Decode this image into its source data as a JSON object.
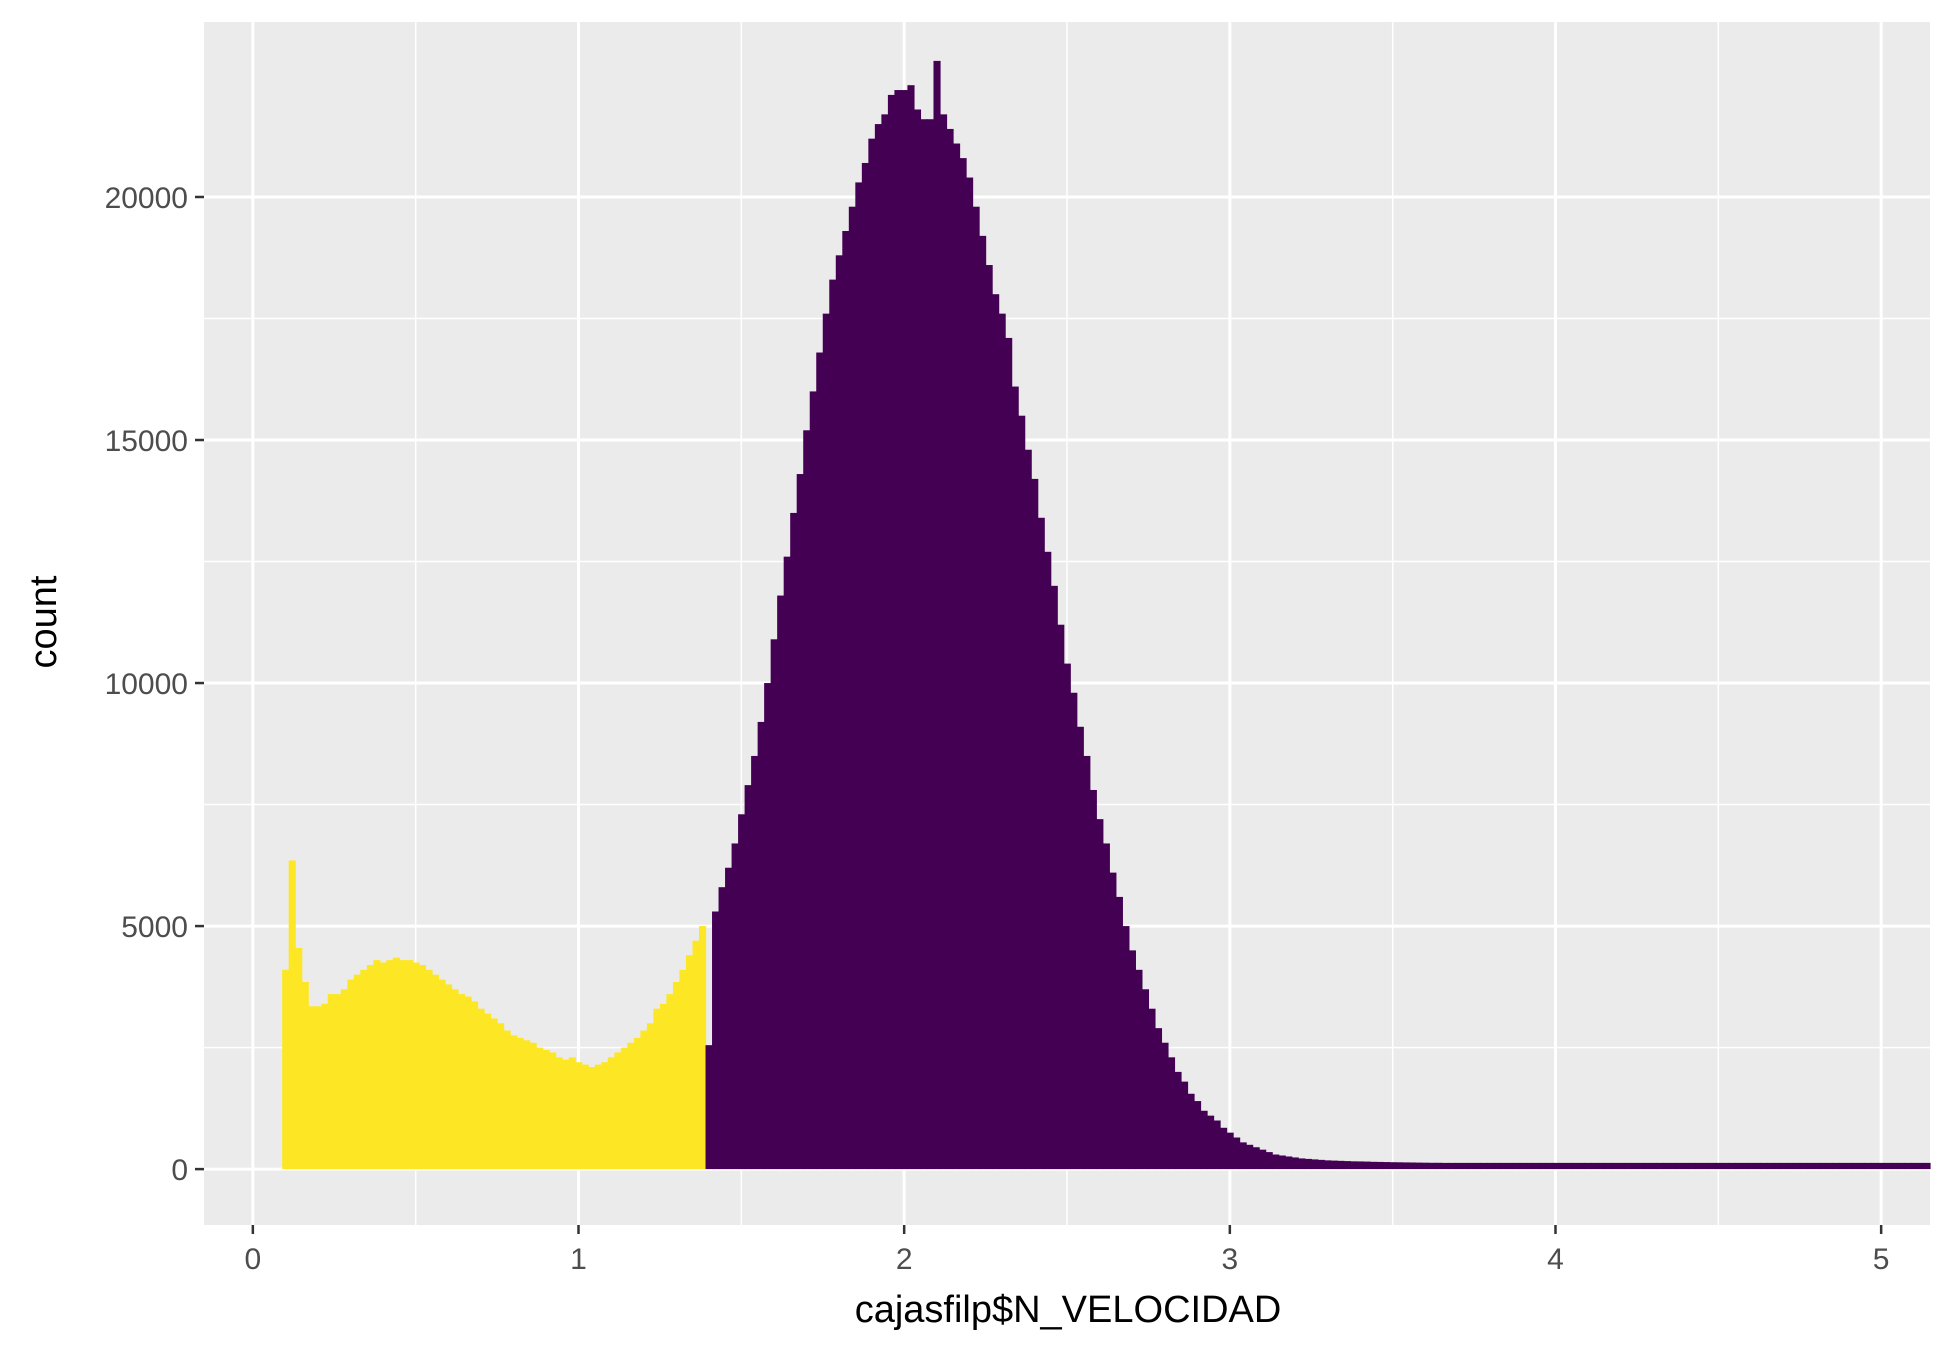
{
  "chart_data": {
    "type": "bar",
    "xlabel": "cajasfilp$N_VELOCIDAD",
    "ylabel": "count",
    "xlim": [
      -0.15,
      5.15
    ],
    "ylim": [
      -1150,
      23600
    ],
    "x_ticks": [
      0,
      1,
      2,
      3,
      4,
      5
    ],
    "y_ticks": [
      0,
      5000,
      10000,
      15000,
      20000
    ],
    "x_tick_labels": [
      "0",
      "1",
      "2",
      "3",
      "4",
      "5"
    ],
    "y_tick_labels": [
      "0",
      "5000",
      "10000",
      "15000",
      "20000"
    ],
    "grid": true,
    "background": "#ebebeb",
    "gridline_color": "#ffffff",
    "bin_width": 0.02,
    "series": [
      {
        "color": "#fde725",
        "x_start": 0.09,
        "values": [
          4100,
          6350,
          4550,
          3850,
          3350,
          3350,
          3400,
          3600,
          3600,
          3700,
          3900,
          4000,
          4100,
          4200,
          4300,
          4250,
          4300,
          4350,
          4300,
          4300,
          4250,
          4200,
          4100,
          4000,
          3900,
          3800,
          3700,
          3600,
          3550,
          3450,
          3300,
          3200,
          3100,
          3000,
          2850,
          2750,
          2700,
          2650,
          2600,
          2500,
          2450,
          2400,
          2300,
          2250,
          2300,
          2200,
          2150,
          2100,
          2150,
          2200,
          2300,
          2400,
          2500,
          2600,
          2700,
          2850,
          3000,
          3300,
          3400,
          3600,
          3850,
          4100,
          4400,
          4700,
          5000
        ]
      },
      {
        "color": "#440154",
        "x_start": 1.39,
        "values": [
          2550,
          5300,
          5800,
          6200,
          6700,
          7300,
          7900,
          8500,
          9200,
          10000,
          10900,
          11800,
          12600,
          13500,
          14300,
          15200,
          16000,
          16800,
          17600,
          18300,
          18800,
          19300,
          19800,
          20300,
          20700,
          21200,
          21500,
          21700,
          22100,
          22200,
          22200,
          22300,
          21800,
          21600,
          21600,
          22800,
          21700,
          21400,
          21100,
          20800,
          20400,
          19800,
          19200,
          18600,
          18000,
          17600,
          17100,
          16100,
          15500,
          14800,
          14200,
          13400,
          12700,
          12000,
          11200,
          10400,
          9800,
          9100,
          8500,
          7800,
          7200,
          6700,
          6100,
          5600,
          5000,
          4500,
          4100,
          3700,
          3300,
          2900,
          2600,
          2300,
          2000,
          1800,
          1550,
          1400,
          1200,
          1100,
          1000,
          850,
          750,
          650,
          550,
          500,
          450,
          400,
          350,
          300,
          280,
          260,
          240,
          220,
          210,
          200,
          190,
          180,
          175,
          170,
          165,
          160,
          158,
          155,
          150,
          148,
          145,
          142,
          140,
          138,
          136,
          134,
          132,
          130,
          130,
          128,
          128,
          128,
          128,
          128,
          128,
          128,
          128,
          128,
          128,
          128,
          128,
          128,
          128,
          128,
          128,
          128,
          128,
          128,
          128,
          128,
          128,
          128,
          128,
          128,
          128,
          128,
          128,
          128,
          128,
          128,
          128,
          128,
          128,
          128,
          128,
          128,
          128,
          128,
          128,
          128,
          128,
          128,
          128,
          128,
          128,
          128,
          128,
          128,
          128,
          128,
          128,
          128,
          128,
          128,
          128,
          128,
          128,
          128,
          128,
          128,
          128,
          128,
          128,
          128,
          128,
          128,
          128,
          128,
          128,
          128,
          128,
          128,
          128,
          128
        ]
      }
    ]
  }
}
